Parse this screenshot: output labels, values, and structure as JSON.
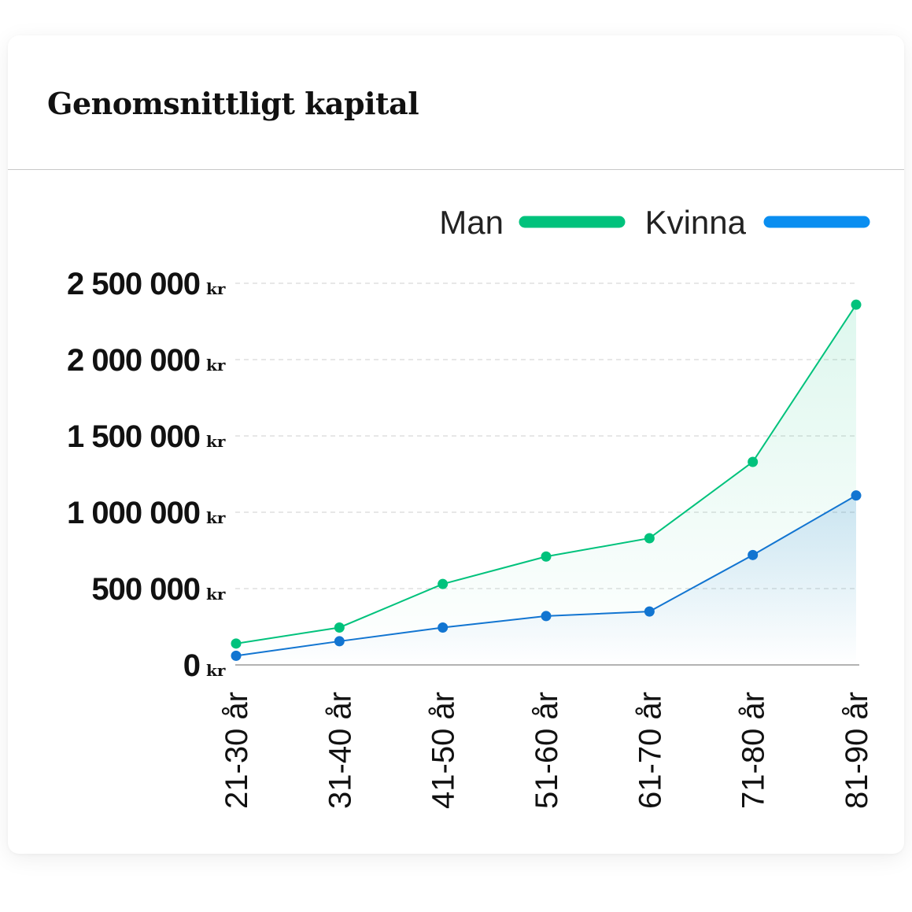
{
  "card": {
    "title": "Genomsnittligt kapital"
  },
  "chart_data": {
    "type": "line",
    "categories": [
      "21-30 år",
      "31-40 år",
      "41-50 år",
      "51-60 år",
      "61-70 år",
      "71-80 år",
      "81-90 år"
    ],
    "series": [
      {
        "name": "Man",
        "color": "#00c27c",
        "values": [
          140000,
          245000,
          530000,
          710000,
          830000,
          1330000,
          2360000
        ]
      },
      {
        "name": "Kvinna",
        "color": "#1275d1",
        "legend_color": "#0a8ef0",
        "values": [
          60000,
          155000,
          245000,
          320000,
          350000,
          720000,
          1110000
        ]
      }
    ],
    "y_ticks": [
      0,
      500000,
      1000000,
      1500000,
      2000000,
      2500000
    ],
    "y_tick_labels": [
      "0",
      "500 000",
      "1 000 000",
      "1 500 000",
      "2 000 000",
      "2 500 000"
    ],
    "y_unit": "kr",
    "ylim": [
      0,
      2500000
    ],
    "grid": "horizontal dashed",
    "legend": "top-right",
    "area_fill": true
  }
}
